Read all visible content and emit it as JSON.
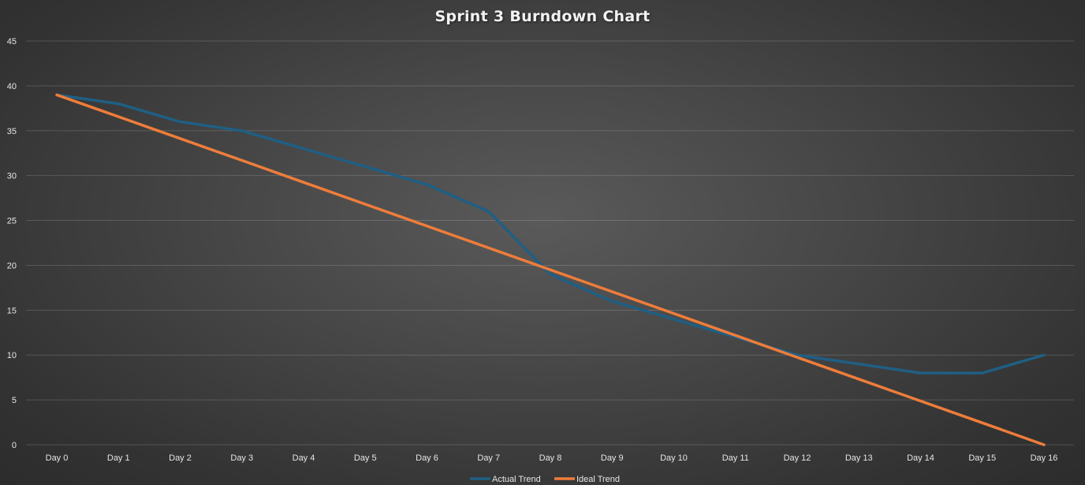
{
  "chart_data": {
    "type": "line",
    "title": "Sprint 3 Burndown Chart",
    "xlabel": "",
    "ylabel": "",
    "categories": [
      "Day 0",
      "Day 1",
      "Day 2",
      "Day 3",
      "Day 4",
      "Day 5",
      "Day 6",
      "Day 7",
      "Day 8",
      "Day 9",
      "Day 10",
      "Day 11",
      "Day 12",
      "Day 13",
      "Day 14",
      "Day 15",
      "Day 16"
    ],
    "ylim": [
      0,
      45
    ],
    "yticks": [
      0,
      5,
      10,
      15,
      20,
      25,
      30,
      35,
      40,
      45
    ],
    "grid": true,
    "legend_position": "bottom",
    "series": [
      {
        "name": "Actual Trend",
        "color": "#1f5f84",
        "values": [
          39,
          38,
          36,
          35,
          33,
          31,
          29,
          26,
          19,
          16,
          14,
          12,
          10,
          9,
          8,
          8,
          10
        ]
      },
      {
        "name": "Ideal Trend",
        "color": "#ee7d3b",
        "values": [
          39,
          36.56,
          34.13,
          31.69,
          29.25,
          26.81,
          24.38,
          21.94,
          19.5,
          17.06,
          14.63,
          12.19,
          9.75,
          7.31,
          4.88,
          2.44,
          0
        ]
      }
    ]
  }
}
